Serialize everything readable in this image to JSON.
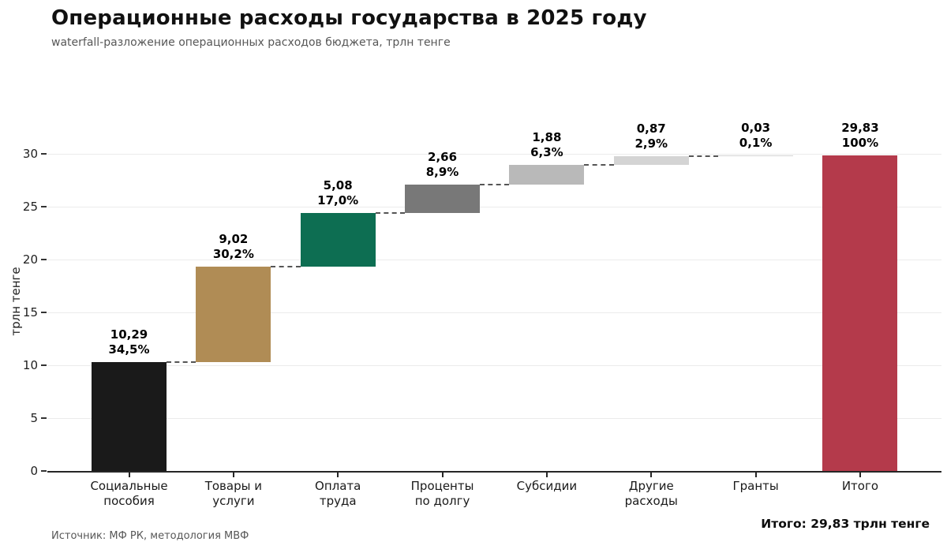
{
  "header": {
    "title": "Операционные расходы государства в 2025 году",
    "subtitle": "waterfall-разложение операционных расходов бюджета, трлн тенге"
  },
  "footer": {
    "source": "Источник: МФ РК, методология МВФ",
    "total": "Итого: 29,83 трлн тенге"
  },
  "chart_data": {
    "type": "bar",
    "variant": "waterfall",
    "title": "Операционные расходы государства в 2025 году",
    "subtitle": "waterfall-разложение операционных расходов бюджета, трлн тенге",
    "ylabel": "трлн тенге",
    "xlabel": "",
    "yticks": [
      0,
      5,
      10,
      15,
      20,
      25,
      30
    ],
    "ylim": [
      0,
      31.5
    ],
    "grid": "horizontal",
    "legend": "none",
    "total_value": 29.83,
    "bars": [
      {
        "category": "Социальные\nпособия",
        "value": 10.29,
        "pct": 34.5,
        "value_label": "10,29",
        "pct_label": "34,5%",
        "start": 0,
        "end": 10.29,
        "color": "#1a1a1a",
        "is_total": false
      },
      {
        "category": "Товары и\nуслуги",
        "value": 9.02,
        "pct": 30.2,
        "value_label": "9,02",
        "pct_label": "30,2%",
        "start": 10.29,
        "end": 19.31,
        "color": "#b08c55",
        "is_total": false
      },
      {
        "category": "Оплата\nтруда",
        "value": 5.08,
        "pct": 17.0,
        "value_label": "5,08",
        "pct_label": "17,0%",
        "start": 19.31,
        "end": 24.39,
        "color": "#0d6e52",
        "is_total": false
      },
      {
        "category": "Проценты\nпо долгу",
        "value": 2.66,
        "pct": 8.9,
        "value_label": "2,66",
        "pct_label": "8,9%",
        "start": 24.39,
        "end": 27.05,
        "color": "#787878",
        "is_total": false
      },
      {
        "category": "Субсидии",
        "value": 1.88,
        "pct": 6.3,
        "value_label": "1,88",
        "pct_label": "6,3%",
        "start": 27.05,
        "end": 28.93,
        "color": "#b9b9b9",
        "is_total": false
      },
      {
        "category": "Другие\nрасходы",
        "value": 0.87,
        "pct": 2.9,
        "value_label": "0,87",
        "pct_label": "2,9%",
        "start": 28.93,
        "end": 29.8,
        "color": "#d4d4d4",
        "is_total": false
      },
      {
        "category": "Гранты",
        "value": 0.03,
        "pct": 0.1,
        "value_label": "0,03",
        "pct_label": "0,1%",
        "start": 29.8,
        "end": 29.83,
        "color": "#d4d4d4",
        "is_total": false
      },
      {
        "category": "Итого",
        "value": 29.83,
        "pct": 100,
        "value_label": "29,83",
        "pct_label": "100%",
        "start": 0,
        "end": 29.83,
        "color": "#b43a4b",
        "is_total": true
      }
    ],
    "colors": {
      "connector": "#555555",
      "gridline": "#ebebeb",
      "axis": "#262626",
      "total_bar": "#b43a4b"
    }
  }
}
